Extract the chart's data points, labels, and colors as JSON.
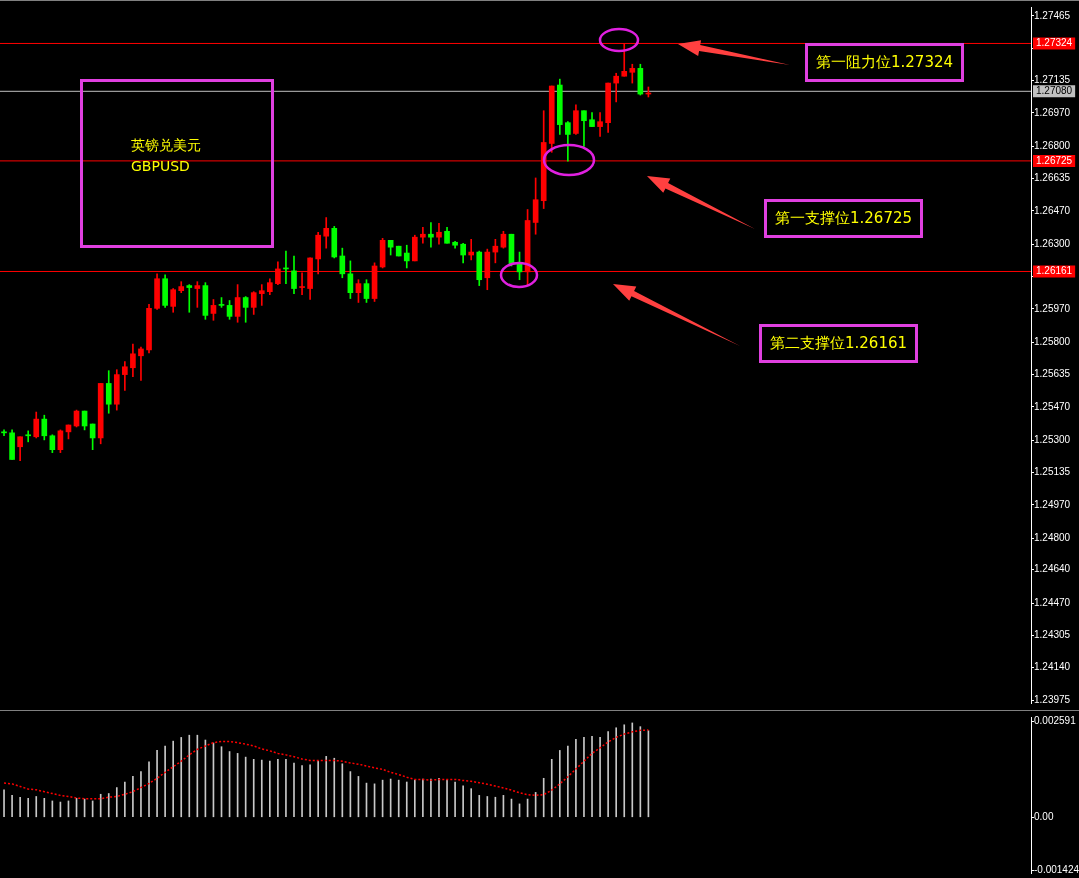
{
  "chart_data": [
    {
      "type": "candlestick",
      "title": "英镑兑美元\nGBPUSD",
      "categories": [
        null,
        null,
        null,
        null,
        null,
        null,
        null,
        null,
        null,
        null,
        null,
        null,
        null,
        null,
        null,
        null,
        null,
        null,
        null,
        null,
        null,
        null,
        null,
        null,
        null,
        null,
        null,
        null,
        null,
        null,
        null,
        null,
        null,
        null,
        null,
        null,
        null,
        null,
        null,
        null,
        null,
        null,
        null,
        null,
        null,
        null,
        null,
        null,
        null,
        null,
        null,
        null,
        null,
        null,
        null,
        null,
        null,
        null,
        null,
        null,
        null,
        null,
        null,
        null,
        null,
        null,
        null,
        null,
        null,
        null,
        null,
        null,
        null,
        null,
        null,
        null,
        null,
        null,
        null,
        null,
        null,
        null,
        null,
        null,
        null,
        null,
        null,
        null,
        null,
        null,
        null,
        null,
        null,
        null,
        null,
        null,
        null,
        null,
        null,
        null,
        null,
        null,
        null,
        null,
        null,
        null,
        null,
        null,
        null,
        null,
        null,
        null,
        null,
        null,
        null,
        null,
        null,
        null,
        null,
        null,
        null,
        null,
        null,
        null,
        null,
        null,
        null,
        null
      ],
      "ohlc": [
        [
          1.25338,
          1.25353,
          1.25323,
          1.25338
        ],
        [
          1.25338,
          1.25353,
          1.25202,
          1.25202
        ],
        [
          1.25267,
          1.25318,
          1.25196,
          1.25318
        ],
        [
          1.25323,
          1.25348,
          1.25292,
          1.25323
        ],
        [
          1.25318,
          1.25444,
          1.25312,
          1.25408
        ],
        [
          1.25408,
          1.25428,
          1.25302,
          1.25323
        ],
        [
          1.25323,
          1.25328,
          1.25237,
          1.25252
        ],
        [
          1.25252,
          1.25353,
          1.25237,
          1.25348
        ],
        [
          1.25343,
          1.25378,
          1.25307,
          1.25378
        ],
        [
          1.25373,
          1.25454,
          1.25368,
          1.25449
        ],
        [
          1.25449,
          1.25449,
          1.25353,
          1.25373
        ],
        [
          1.25383,
          1.25383,
          1.25252,
          1.25312
        ],
        [
          1.25312,
          1.2559,
          1.25282,
          1.2559
        ],
        [
          1.2559,
          1.25655,
          1.25438,
          1.25484
        ],
        [
          1.25484,
          1.2566,
          1.25454,
          1.25635
        ],
        [
          1.25635,
          1.25701,
          1.25554,
          1.25675
        ],
        [
          1.2567,
          1.25791,
          1.25625,
          1.25741
        ],
        [
          1.25731,
          1.25776,
          1.25605,
          1.25766
        ],
        [
          1.25761,
          1.25993,
          1.25746,
          1.25973
        ],
        [
          1.25973,
          1.26149,
          1.25968,
          1.26124
        ],
        [
          1.26124,
          1.26144,
          1.25978,
          1.25988
        ],
        [
          1.25983,
          1.26074,
          1.25953,
          1.26068
        ],
        [
          1.26063,
          1.26109,
          1.26053,
          1.26084
        ],
        [
          1.26089,
          1.26094,
          1.25953,
          1.26079
        ],
        [
          1.26074,
          1.26109,
          1.25978,
          1.26089
        ],
        [
          1.26089,
          1.26104,
          1.25917,
          1.25937
        ],
        [
          1.25947,
          1.26018,
          1.25912,
          1.25988
        ],
        [
          1.25988,
          1.26028,
          1.25978,
          1.25988
        ],
        [
          1.25988,
          1.26013,
          1.25917,
          1.25932
        ],
        [
          1.25932,
          1.26094,
          1.25902,
          1.26028
        ],
        [
          1.26028,
          1.26033,
          1.25902,
          1.25978
        ],
        [
          1.25978,
          1.26058,
          1.25942,
          1.26053
        ],
        [
          1.26048,
          1.26094,
          1.25988,
          1.26063
        ],
        [
          1.26058,
          1.26124,
          1.26043,
          1.26104
        ],
        [
          1.26099,
          1.2621,
          1.26094,
          1.26174
        ],
        [
          1.26174,
          1.26265,
          1.26099,
          1.26174
        ],
        [
          1.26164,
          1.2624,
          1.26048,
          1.26074
        ],
        [
          1.26079,
          1.26154,
          1.26043,
          1.26079
        ],
        [
          1.26074,
          1.2623,
          1.26018,
          1.2623
        ],
        [
          1.26225,
          1.26361,
          1.26149,
          1.26346
        ],
        [
          1.26341,
          1.26436,
          1.2628,
          1.26381
        ],
        [
          1.26381,
          1.26391,
          1.2623,
          1.26235
        ],
        [
          1.2624,
          1.2628,
          1.26129,
          1.26149
        ],
        [
          1.26149,
          1.26215,
          1.26023,
          1.26053
        ],
        [
          1.26053,
          1.26119,
          1.26003,
          1.26099
        ],
        [
          1.26099,
          1.26119,
          1.26003,
          1.26023
        ],
        [
          1.26023,
          1.26205,
          1.26008,
          1.26189
        ],
        [
          1.26184,
          1.2633,
          1.26179,
          1.2632
        ],
        [
          1.2632,
          1.2632,
          1.26245,
          1.26285
        ],
        [
          1.2629,
          1.2629,
          1.2624,
          1.2624
        ],
        [
          1.26255,
          1.26295,
          1.26179,
          1.26215
        ],
        [
          1.26215,
          1.26346,
          1.26215,
          1.26336
        ],
        [
          1.26336,
          1.26386,
          1.26305,
          1.26351
        ],
        [
          1.26351,
          1.26411,
          1.26285,
          1.26336
        ],
        [
          1.26336,
          1.26406,
          1.263,
          1.26361
        ],
        [
          1.26366,
          1.26386,
          1.26305,
          1.26305
        ],
        [
          1.2631,
          1.26315,
          1.2628,
          1.26295
        ],
        [
          1.263,
          1.26305,
          1.26205,
          1.26245
        ],
        [
          1.26245,
          1.26325,
          1.2622,
          1.2626
        ],
        [
          1.2626,
          1.26265,
          1.26089,
          1.26119
        ],
        [
          1.26129,
          1.26275,
          1.26068,
          1.2626
        ],
        [
          1.2626,
          1.26325,
          1.26205,
          1.2629
        ],
        [
          1.26285,
          1.26366,
          1.2628,
          1.26351
        ],
        [
          1.26351,
          1.26351,
          1.26189,
          1.26199
        ],
        [
          1.26199,
          1.2626,
          1.26119,
          1.26159
        ],
        [
          1.26159,
          1.26477,
          1.26089,
          1.26421
        ],
        [
          1.26411,
          1.26638,
          1.26351,
          1.26527
        ],
        [
          1.26522,
          1.26981,
          1.26482,
          1.26819
        ],
        [
          1.26814,
          1.27107,
          1.26769,
          1.27107
        ],
        [
          1.27112,
          1.27142,
          1.2686,
          1.2691
        ],
        [
          1.2692,
          1.26925,
          1.26724,
          1.2686
        ],
        [
          1.26865,
          1.27011,
          1.2686,
          1.26981
        ],
        [
          1.26981,
          1.26981,
          1.26799,
          1.2693
        ],
        [
          1.26935,
          1.26971,
          1.269,
          1.269
        ],
        [
          1.269,
          1.26971,
          1.2685,
          1.26925
        ],
        [
          1.2692,
          1.27122,
          1.2687,
          1.27122
        ],
        [
          1.27122,
          1.27172,
          1.27026,
          1.27157
        ],
        [
          1.27157,
          1.27324,
          1.27157,
          1.27182
        ],
        [
          1.27177,
          1.27218,
          1.27122,
          1.27197
        ],
        [
          1.27197,
          1.27218,
          1.27061,
          1.27066
        ],
        [
          1.27066,
          1.27102,
          1.27051,
          1.27071
        ],
        null,
        null,
        null,
        null,
        null,
        null,
        null,
        null,
        null,
        null,
        null,
        null,
        null,
        null,
        null,
        null,
        null,
        null,
        null,
        null,
        null,
        null,
        null,
        null,
        null,
        null,
        null,
        null,
        null,
        null,
        null,
        null,
        null,
        null,
        null,
        null,
        null,
        null,
        null,
        null,
        null,
        null,
        null,
        null,
        null,
        null,
        null
      ],
      "colors": [
        "#00ff00",
        "#00ff00",
        "#ff0000",
        "#00ff00",
        "#ff0000",
        "#00ff00",
        "#00ff00",
        "#ff0000",
        "#ff0000",
        "#ff0000",
        "#00ff00",
        "#00ff00",
        "#ff0000",
        "#00ff00",
        "#ff0000",
        "#ff0000",
        "#ff0000",
        "#ff0000",
        "#ff0000",
        "#ff0000",
        "#00ff00",
        "#ff0000",
        "#ff0000",
        "#00ff00",
        "#ff0000",
        "#00ff00",
        "#ff0000",
        "#00ff00",
        "#00ff00",
        "#ff0000",
        "#00ff00",
        "#ff0000",
        "#ff0000",
        "#ff0000",
        "#ff0000",
        "#00ff00",
        "#00ff00",
        "#ff0000",
        "#ff0000",
        "#ff0000",
        "#ff0000",
        "#00ff00",
        "#00ff00",
        "#00ff00",
        "#ff0000",
        "#00ff00",
        "#ff0000",
        "#ff0000",
        "#00ff00",
        "#00ff00",
        "#00ff00",
        "#ff0000",
        "#ff0000",
        "#00ff00",
        "#ff0000",
        "#00ff00",
        "#00ff00",
        "#00ff00",
        "#ff0000",
        "#00ff00",
        "#ff0000",
        "#ff0000",
        "#ff0000",
        "#00ff00",
        "#00ff00",
        "#ff0000",
        "#ff0000",
        "#ff0000",
        "#ff0000",
        "#00ff00",
        "#00ff00",
        "#ff0000",
        "#00ff00",
        "#00ff00",
        "#ff0000",
        "#ff0000",
        "#ff0000",
        "#ff0000",
        "#ff0000",
        "#00ff00",
        "#ff0000",
        null,
        null,
        null,
        null,
        null,
        null,
        null,
        null,
        null,
        null,
        null,
        null,
        null,
        null,
        null,
        null,
        null,
        null,
        null,
        null,
        null,
        null,
        null,
        null,
        null,
        null,
        null,
        null,
        null,
        null,
        null,
        null,
        null,
        null,
        null,
        null,
        null,
        null,
        null,
        null,
        null,
        null,
        null,
        null,
        null,
        null,
        null
      ],
      "ylim": [
        1.2396,
        1.2751
      ],
      "yticks": [
        1.27465,
        {
          "value": 1.273,
          "label": null
        },
        1.27135,
        {
          "value": 1.2697,
          "label": "1.26970"
        },
        {
          "value": 1.268,
          "label": "1.26800"
        },
        1.26635,
        {
          "value": 1.2647,
          "label": "1.26470"
        },
        {
          "value": 1.263,
          "label": "1.26300"
        },
        {
          "value": 1.26135,
          "label": null
        },
        {
          "value": 1.2597,
          "label": "1.25970"
        },
        {
          "value": 1.258,
          "label": "1.25800"
        },
        1.25635,
        {
          "value": 1.2547,
          "label": "1.25470"
        },
        {
          "value": 1.253,
          "label": "1.25300"
        },
        1.25135,
        {
          "value": 1.2497,
          "label": "1.24970"
        },
        {
          "value": 1.248,
          "label": "1.24800"
        },
        {
          "value": 1.2464,
          "label": "1.24640"
        },
        {
          "value": 1.2447,
          "label": "1.24470"
        },
        1.24305,
        {
          "value": 1.2414,
          "label": "1.24140"
        },
        1.23975
      ],
      "ref_lines": [
        {
          "axis": "y",
          "value": 1.27324,
          "label": "1.27324",
          "color": "#ff0000"
        },
        {
          "axis": "y",
          "value": 1.2708,
          "label": "1.27080",
          "color": "#c0c0c0"
        },
        {
          "axis": "y",
          "value": 1.26725,
          "label": "1.26725",
          "color": "#ff0000"
        },
        {
          "axis": "y",
          "value": 1.26161,
          "label": "1.26161",
          "color": "#ff0000"
        }
      ],
      "annotations": [
        "第一阻力位1.27324",
        "第一支撑位1.26725",
        "第二支撑位1.26161"
      ],
      "tick_labels": "y"
    },
    {
      "type": "bar",
      "categories": [
        null,
        null,
        null,
        null,
        null,
        null,
        null,
        null,
        null,
        null,
        null,
        null,
        null,
        null,
        null,
        null,
        null,
        null,
        null,
        null,
        null,
        null,
        null,
        null,
        null,
        null,
        null,
        null,
        null,
        null,
        null,
        null,
        null,
        null,
        null,
        null,
        null,
        null,
        null,
        null,
        null,
        null,
        null,
        null,
        null,
        null,
        null,
        null,
        null,
        null,
        null,
        null,
        null,
        null,
        null,
        null,
        null,
        null,
        null,
        null,
        null,
        null,
        null,
        null,
        null,
        null,
        null,
        null,
        null,
        null,
        null,
        null,
        null,
        null,
        null,
        null,
        null,
        null,
        null,
        null,
        null,
        null,
        null,
        null,
        null,
        null,
        null,
        null,
        null,
        null,
        null,
        null,
        null,
        null,
        null,
        null,
        null,
        null,
        null,
        null,
        null,
        null,
        null,
        null,
        null,
        null,
        null,
        null,
        null,
        null,
        null,
        null,
        null,
        null,
        null,
        null,
        null,
        null,
        null,
        null,
        null,
        null,
        null,
        null,
        null,
        null,
        null,
        null
      ],
      "series": [
        {
          "type": "bar",
          "color": "#c8c8c8",
          "values": [
            0.00074,
            0.00059,
            0.00054,
            0.00051,
            0.00056,
            0.00051,
            0.00044,
            0.00041,
            0.00044,
            0.00051,
            0.00049,
            0.00044,
            0.00062,
            0.00064,
            0.0008,
            0.00095,
            0.0011,
            0.00123,
            0.00149,
            0.0018,
            0.00192,
            0.00205,
            0.00215,
            0.00221,
            0.00221,
            0.00208,
            0.002,
            0.0019,
            0.00177,
            0.00172,
            0.00162,
            0.00156,
            0.00154,
            0.00151,
            0.00156,
            0.00156,
            0.00146,
            0.00139,
            0.00141,
            0.00151,
            0.00164,
            0.00159,
            0.00144,
            0.00123,
            0.0011,
            0.00092,
            0.0009,
            0.001,
            0.00103,
            0.001,
            0.00095,
            0.001,
            0.00103,
            0.00103,
            0.00105,
            0.001,
            0.00095,
            0.00085,
            0.00077,
            0.00059,
            0.00056,
            0.00054,
            0.00059,
            0.00049,
            0.00036,
            0.00049,
            0.00067,
            0.00105,
            0.00156,
            0.0018,
            0.00192,
            0.0021,
            0.00215,
            0.00218,
            0.00215,
            0.00231,
            0.00241,
            0.00249,
            0.00254,
            0.00244,
            0.00233,
            null,
            null,
            null,
            null,
            null,
            null,
            null,
            null,
            null,
            null,
            null,
            null,
            null,
            null,
            null,
            null,
            null,
            null,
            null,
            null,
            null,
            null,
            null,
            null,
            null,
            null,
            null,
            null,
            null,
            null,
            null,
            null,
            null,
            null,
            null,
            null,
            null,
            null,
            null,
            null,
            null,
            null,
            null,
            null,
            null,
            null,
            null
          ]
        },
        {
          "type": "line",
          "color": "#ff0000",
          "line_style": "dotted",
          "values": [
            0.00092,
            0.0009,
            0.00083,
            0.00076,
            0.00074,
            0.00069,
            0.00064,
            0.00059,
            0.00056,
            0.00052,
            0.0005,
            0.0005,
            0.0005,
            0.00054,
            0.00056,
            0.00062,
            0.00069,
            0.0008,
            0.00091,
            0.00105,
            0.00121,
            0.00136,
            0.00151,
            0.00168,
            0.00183,
            0.00192,
            0.00201,
            0.00204,
            0.00204,
            0.00201,
            0.00197,
            0.00192,
            0.00184,
            0.00179,
            0.00172,
            0.00168,
            0.00163,
            0.00157,
            0.00153,
            0.00153,
            0.00153,
            0.00153,
            0.00151,
            0.00146,
            0.00143,
            0.00138,
            0.00133,
            0.00129,
            0.00121,
            0.00115,
            0.00108,
            0.00102,
            0.00102,
            0.001,
            0.00102,
            0.00102,
            0.00102,
            0.00099,
            0.00097,
            0.00093,
            0.00089,
            0.00084,
            0.00079,
            0.00073,
            0.00066,
            0.00061,
            0.00059,
            0.00061,
            0.00073,
            0.0009,
            0.00109,
            0.0013,
            0.00151,
            0.00172,
            0.00187,
            0.00203,
            0.00215,
            0.00224,
            0.0023,
            0.00234,
            0.00235,
            null,
            null,
            null,
            null,
            null,
            null,
            null,
            null,
            null,
            null,
            null,
            null,
            null,
            null,
            null,
            null,
            null,
            null,
            null,
            null,
            null,
            null,
            null,
            null,
            null,
            null,
            null,
            null,
            null,
            null,
            null,
            null,
            null,
            null,
            null,
            null,
            null,
            null,
            null,
            null,
            null,
            null,
            null,
            null,
            null,
            null,
            null
          ]
        }
      ],
      "marker": "none",
      "ylim": [
        -0.0015,
        0.0027
      ],
      "yticks": [
        0.002591,
        {
          "value": 0,
          "label": "0.00"
        },
        -0.001424
      ],
      "tick_labels": "y"
    }
  ]
}
